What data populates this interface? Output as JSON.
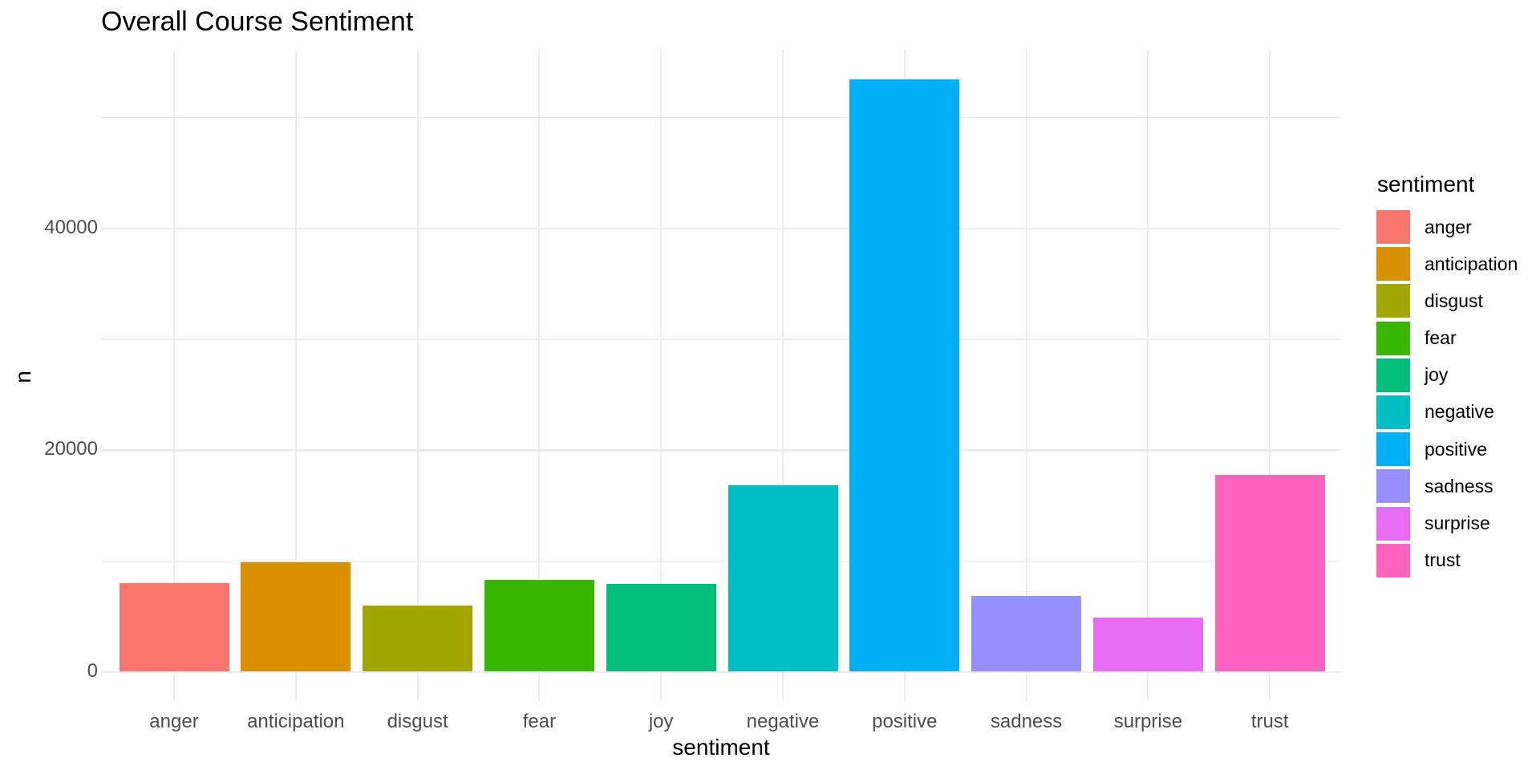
{
  "title": "Overall Course Sentiment",
  "axes": {
    "x_title": "sentiment",
    "y_title": "n",
    "y_tick_labels": [
      "0",
      "20000",
      "40000"
    ]
  },
  "legend": {
    "title": "sentiment",
    "items": [
      {
        "label": "anger",
        "color": "#F8766D"
      },
      {
        "label": "anticipation",
        "color": "#D89000"
      },
      {
        "label": "disgust",
        "color": "#A3A500"
      },
      {
        "label": "fear",
        "color": "#39B600"
      },
      {
        "label": "joy",
        "color": "#00BF7D"
      },
      {
        "label": "negative",
        "color": "#00BFC4"
      },
      {
        "label": "positive",
        "color": "#00B0F6"
      },
      {
        "label": "sadness",
        "color": "#9590FF"
      },
      {
        "label": "surprise",
        "color": "#E76BF3"
      },
      {
        "label": "trust",
        "color": "#FF62BC"
      }
    ]
  },
  "chart_data": {
    "type": "bar",
    "title": "Overall Course Sentiment",
    "xlabel": "sentiment",
    "ylabel": "n",
    "categories": [
      "anger",
      "anticipation",
      "disgust",
      "fear",
      "joy",
      "negative",
      "positive",
      "sadness",
      "surprise",
      "trust"
    ],
    "values": [
      7950,
      9800,
      5900,
      8250,
      7900,
      16800,
      53400,
      6800,
      4850,
      17700
    ],
    "bar_colors": [
      "#F8766D",
      "#D89000",
      "#A3A500",
      "#39B600",
      "#00BF7D",
      "#00BFC4",
      "#00B0F6",
      "#9590FF",
      "#E76BF3",
      "#FF62BC"
    ],
    "ylim": [
      0,
      56100
    ],
    "y_ticks_major": [
      0,
      20000,
      40000
    ],
    "y_ticks_minor": [
      10000,
      30000,
      50000
    ],
    "grid": true,
    "grid_color": "#EBEBEB",
    "background": "#FFFFFF",
    "text_color": "#000000",
    "tick_label_color": "#4D4D4D",
    "legend_position": "right",
    "legend_title": "sentiment",
    "bar_width_fraction": 0.9
  }
}
